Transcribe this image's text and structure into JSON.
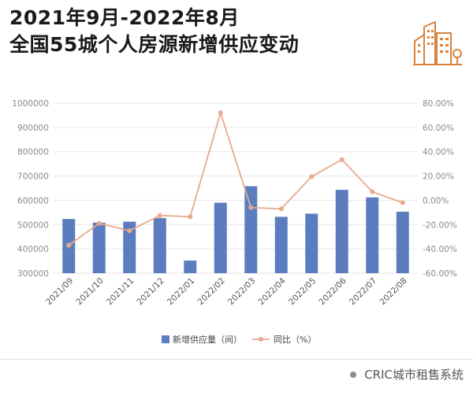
{
  "title": {
    "line1": "2021年9月-2022年8月",
    "line2": "全国55城个人房源新增供应变动"
  },
  "logo_icon": "city-buildings-icon",
  "footer": {
    "source": "CRIC城市租售系统"
  },
  "colors": {
    "bar": "#5b7dbf",
    "line": "#e8a98b",
    "title": "#1a1a1a",
    "logo": "#d9823b"
  },
  "chart_data": {
    "type": "bar+line",
    "categories": [
      "2021/09",
      "2021/10",
      "2021/11",
      "2021/12",
      "2022/01",
      "2022/02",
      "2022/03",
      "2022/04",
      "2022/05",
      "2022/06",
      "2022/07",
      "2022/08"
    ],
    "series": [
      {
        "name": "新增供应量（间）",
        "type": "bar",
        "axis": "left",
        "values": [
          523000,
          508000,
          512000,
          527000,
          352000,
          590000,
          658000,
          532000,
          545000,
          643000,
          612000,
          553000
        ]
      },
      {
        "name": "同比（%）",
        "type": "line",
        "axis": "right",
        "values": [
          -37.0,
          -19.0,
          -25.0,
          -12.5,
          -13.5,
          72.0,
          -6.0,
          -7.0,
          19.5,
          33.5,
          7.0,
          -2.0
        ]
      }
    ],
    "left_axis": {
      "min": 300000,
      "max": 1000000,
      "ticks": [
        "300000",
        "400000",
        "500000",
        "600000",
        "700000",
        "800000",
        "900000",
        "1000000"
      ]
    },
    "right_axis": {
      "min": -60,
      "max": 80,
      "ticks": [
        "-60.00%",
        "-40.00%",
        "-20.00%",
        "0.00%",
        "20.00%",
        "40.00%",
        "60.00%",
        "80.00%"
      ]
    },
    "legend": [
      "新增供应量（间）",
      "同比（%）"
    ],
    "legend_position": "bottom"
  }
}
